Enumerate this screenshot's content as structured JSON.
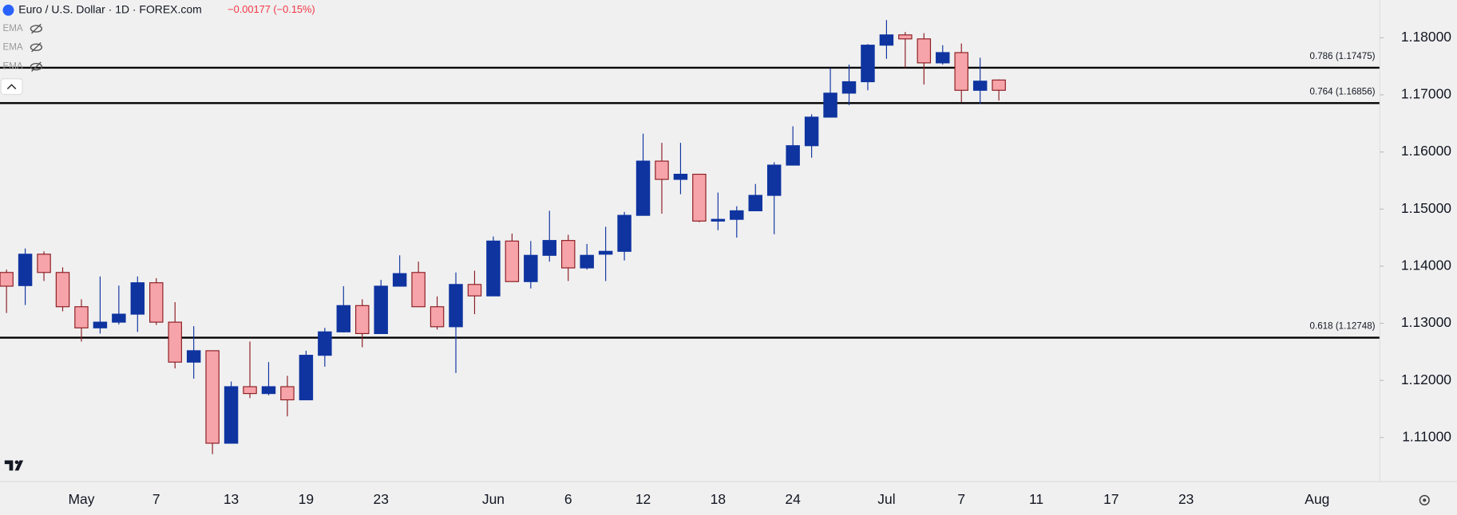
{
  "header": {
    "title": "Euro / U.S. Dollar · 1D · FOREX.com",
    "change": "−0.00177 (−0.15%)",
    "indicators": [
      "EMA",
      "EMA",
      "EMA"
    ]
  },
  "chart_data": {
    "type": "candlestick",
    "categories": [
      null,
      null,
      null,
      null,
      "May",
      null,
      null,
      null,
      "7",
      null,
      null,
      null,
      "13",
      null,
      null,
      null,
      "19",
      null,
      null,
      null,
      "23",
      null,
      null,
      null,
      null,
      null,
      "Jun",
      null,
      null,
      null,
      "6",
      null,
      null,
      null,
      "12",
      null,
      null,
      null,
      "18",
      null,
      null,
      null,
      "24",
      null,
      null,
      null,
      null,
      "Jul",
      null,
      null,
      null,
      "7",
      null,
      null,
      null,
      "11",
      null,
      null,
      null,
      "17",
      null,
      null,
      null,
      "23",
      null,
      null,
      null,
      null,
      null,
      null,
      "Aug"
    ],
    "open": [
      1.1389,
      1.1366,
      1.1421,
      1.1389,
      1.1329,
      1.1292,
      1.1302,
      1.1316,
      1.1371,
      1.1302,
      1.1232,
      1.1252,
      1.109,
      1.1189,
      1.1177,
      1.1189,
      1.1166,
      1.1244,
      1.1285,
      1.1331,
      1.1282,
      1.1365,
      1.1389,
      1.1329,
      1.1294,
      1.1368,
      1.1348,
      1.1444,
      1.1373,
      1.1419,
      1.1445,
      1.1397,
      1.1421,
      1.1426,
      1.1489,
      1.1584,
      1.1552,
      1.1561,
      1.1479,
      1.1482,
      1.1497,
      1.1524,
      1.1577,
      1.1611,
      1.1661,
      1.1703,
      1.1723,
      1.1787,
      1.1805,
      1.1798,
      1.1756,
      1.1774,
      1.1708,
      1.1726,
      null,
      null,
      null,
      null,
      null,
      null,
      null,
      null,
      null,
      null,
      null,
      null,
      null,
      null,
      null,
      null,
      null
    ],
    "high": [
      1.1394,
      1.1431,
      1.1426,
      1.1398,
      1.1342,
      1.1382,
      1.1366,
      1.1382,
      1.1379,
      1.1337,
      1.1295,
      1.1252,
      1.1198,
      1.1268,
      1.1232,
      1.1208,
      1.1252,
      1.1292,
      1.1365,
      1.1342,
      1.1376,
      1.1419,
      1.1408,
      1.1347,
      1.1389,
      1.1392,
      1.1452,
      1.1457,
      1.1444,
      1.1497,
      1.1455,
      1.1439,
      1.1469,
      1.1495,
      1.1632,
      1.1616,
      1.1616,
      1.1561,
      1.1529,
      1.1505,
      1.1544,
      1.1582,
      1.1645,
      1.1666,
      1.1747,
      1.1753,
      1.1789,
      1.1831,
      1.181,
      1.1808,
      1.1787,
      1.179,
      1.1765,
      1.1727,
      null,
      null,
      null,
      null,
      null,
      null,
      null,
      null,
      null,
      null,
      null,
      null,
      null,
      null,
      null,
      null,
      null
    ],
    "low": [
      1.1318,
      1.1332,
      1.1374,
      1.1321,
      1.1268,
      1.1282,
      1.1298,
      1.1285,
      1.1297,
      1.1221,
      1.1203,
      1.1071,
      1.109,
      1.1169,
      1.1174,
      1.1137,
      1.1166,
      1.1224,
      1.1284,
      1.1258,
      1.1282,
      1.1365,
      1.1329,
      1.1289,
      1.1213,
      1.1316,
      1.1348,
      1.1373,
      1.1361,
      1.1408,
      1.1374,
      1.1394,
      1.1374,
      1.141,
      1.1489,
      1.1492,
      1.1526,
      1.1477,
      1.1463,
      1.145,
      1.1497,
      1.1456,
      1.1577,
      1.159,
      1.1661,
      1.1682,
      1.1708,
      1.1763,
      1.1747,
      1.1718,
      1.1753,
      1.1687,
      1.1684,
      1.169,
      null,
      null,
      null,
      null,
      null,
      null,
      null,
      null,
      null,
      null,
      null,
      null,
      null,
      null,
      null,
      null,
      null
    ],
    "close": [
      1.1365,
      1.1421,
      1.1389,
      1.1329,
      1.1292,
      1.1302,
      1.1316,
      1.1371,
      1.1302,
      1.1232,
      1.1252,
      1.109,
      1.1189,
      1.1177,
      1.1189,
      1.1166,
      1.1244,
      1.1285,
      1.1331,
      1.1282,
      1.1365,
      1.1387,
      1.1329,
      1.1294,
      1.1368,
      1.1348,
      1.1444,
      1.1373,
      1.1419,
      1.1445,
      1.1397,
      1.1419,
      1.1426,
      1.1489,
      1.1584,
      1.1552,
      1.1561,
      1.1479,
      1.1482,
      1.1497,
      1.1524,
      1.1577,
      1.1611,
      1.1661,
      1.1703,
      1.1723,
      1.1787,
      1.1805,
      1.1798,
      1.1756,
      1.1774,
      1.1708,
      1.1724,
      1.1708,
      null,
      null,
      null,
      null,
      null,
      null,
      null,
      null,
      null,
      null,
      null,
      null,
      null,
      null,
      null,
      null,
      null
    ],
    "up_color": "#0f34a0",
    "down_color": "#f6a4a9",
    "down_border": "#8c1c22",
    "ylim": [
      1.10227,
      1.18661
    ],
    "yticks": [
      {
        "value": 1.11,
        "label": "1.11000"
      },
      {
        "value": 1.12,
        "label": "1.12000"
      },
      {
        "value": 1.13,
        "label": "1.13000"
      },
      {
        "value": 1.14,
        "label": "1.14000"
      },
      {
        "value": 1.15,
        "label": "1.15000"
      },
      {
        "value": 1.16,
        "label": "1.16000"
      },
      {
        "value": 1.17,
        "label": "1.17000"
      },
      {
        "value": 1.18,
        "label": "1.18000"
      }
    ],
    "levels": [
      {
        "value": 1.17475,
        "label": "0.786 (1.17475)"
      },
      {
        "value": 1.16856,
        "label": "0.764 (1.16856)"
      },
      {
        "value": 1.12748,
        "label": "0.618 (1.12748)"
      }
    ],
    "level_color": "#000000",
    "grid": false
  }
}
